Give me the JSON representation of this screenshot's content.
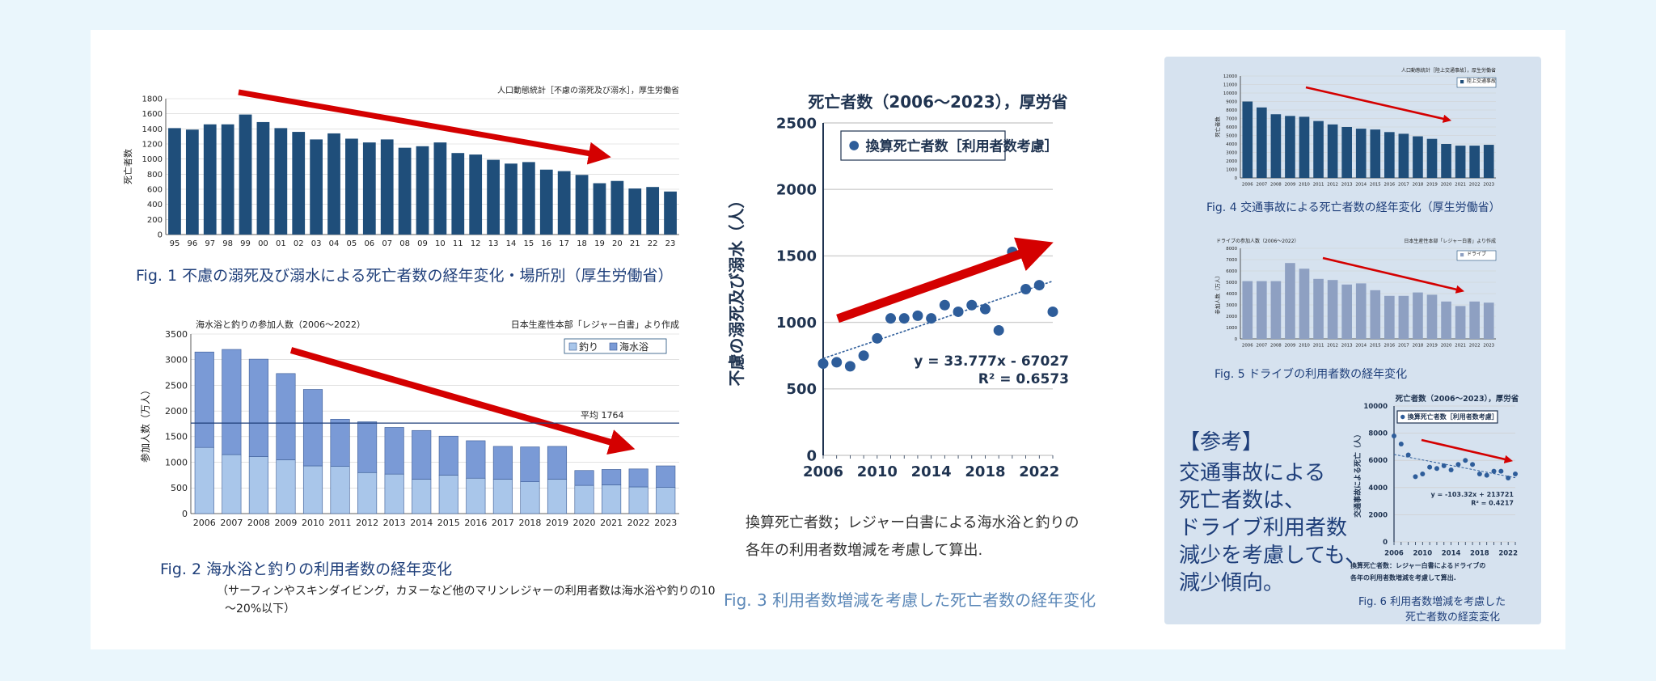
{
  "colors": {
    "bar_dark": "#1f4e7a",
    "bar_blue": "#7a9ad6",
    "bar_light": "#a9c6ea",
    "drive_bar": "#8ea0c2",
    "trend_arrow": "#d40000",
    "point": "#2e5d9a",
    "caption": "#1f3f7a",
    "background": "#eaf6fc",
    "side_panel": "#d6e2ef"
  },
  "chart_data": [
    {
      "id": "fig1",
      "type": "bar",
      "source": "人口動態統計［不慮の溺死及び溺水］，厚生労働省",
      "ylabel": "死亡者数",
      "ylim": [
        0,
        1800
      ],
      "yticks": [
        "0",
        "200",
        "400",
        "600",
        "800",
        "1000",
        "1200",
        "1400",
        "1600",
        "1800"
      ],
      "categories": [
        "95",
        "96",
        "97",
        "98",
        "99",
        "00",
        "01",
        "02",
        "03",
        "04",
        "05",
        "06",
        "07",
        "08",
        "09",
        "10",
        "11",
        "12",
        "13",
        "14",
        "15",
        "16",
        "17",
        "18",
        "19",
        "20",
        "21",
        "22",
        "23"
      ],
      "values": [
        1410,
        1390,
        1460,
        1460,
        1590,
        1490,
        1410,
        1360,
        1260,
        1340,
        1270,
        1220,
        1260,
        1150,
        1170,
        1220,
        1080,
        1060,
        990,
        940,
        960,
        860,
        840,
        790,
        680,
        710,
        610,
        630,
        570
      ],
      "trend_arrow": "decreasing"
    },
    {
      "id": "fig2",
      "type": "bar",
      "stacked": true,
      "title": "海水浴と釣りの参加人数（2006〜2022）",
      "source": "日本生産性本部「レジャー白書」より作成",
      "ylabel": "参加人数（万人）",
      "ylim": [
        0,
        3500
      ],
      "yticks": [
        "0",
        "500",
        "1000",
        "1500",
        "2000",
        "2500",
        "3000",
        "3500"
      ],
      "categories": [
        "2006",
        "2007",
        "2008",
        "2009",
        "2010",
        "2011",
        "2012",
        "2013",
        "2014",
        "2015",
        "2016",
        "2017",
        "2018",
        "2019",
        "2020",
        "2021",
        "2022",
        "2023"
      ],
      "series": [
        {
          "name": "釣り",
          "values": [
            1290,
            1150,
            1110,
            1050,
            930,
            920,
            800,
            770,
            670,
            750,
            690,
            670,
            620,
            670,
            550,
            560,
            520,
            510
          ]
        },
        {
          "name": "海水浴",
          "values": [
            1860,
            2050,
            1900,
            1680,
            1490,
            920,
            990,
            910,
            950,
            760,
            730,
            640,
            680,
            640,
            290,
            300,
            350,
            420
          ]
        }
      ],
      "average": {
        "label": "平均",
        "value": "1764"
      },
      "trend_arrow": "decreasing"
    },
    {
      "id": "fig3",
      "type": "scatter",
      "title": "死亡者数（2006〜2023），厚労省",
      "legend": "換算死亡者数［利用者数考慮］",
      "ylabel": "不慮の溺死及び溺水（人）",
      "xlim": [
        2006,
        2023
      ],
      "ylim": [
        0,
        2500
      ],
      "xticks": [
        "2006",
        "2010",
        "2014",
        "2018",
        "2022"
      ],
      "yticks": [
        "0",
        "500",
        "1000",
        "1500",
        "2000",
        "2500"
      ],
      "x": [
        2006,
        2007,
        2008,
        2009,
        2010,
        2011,
        2012,
        2013,
        2014,
        2015,
        2016,
        2017,
        2018,
        2019,
        2020,
        2021,
        2022,
        2023
      ],
      "y": [
        690,
        700,
        670,
        750,
        880,
        1030,
        1030,
        1050,
        1030,
        1130,
        1080,
        1130,
        1100,
        940,
        1530,
        1250,
        1280,
        1080
      ],
      "fit_equation": "y = 33.777x - 67027",
      "r_squared": "R² = 0.6573",
      "trend_arrow": "increasing"
    },
    {
      "id": "fig4",
      "type": "bar",
      "source": "人口動態統計［陸上交通事故］，厚生労働省",
      "legend": "陸上交通事故",
      "ylabel": "死亡者数",
      "ylim": [
        0,
        12000
      ],
      "yticks": [
        "0",
        "1000",
        "2000",
        "3000",
        "4000",
        "5000",
        "6000",
        "7000",
        "8000",
        "9000",
        "10000",
        "11000",
        "12000"
      ],
      "categories": [
        "2006",
        "2007",
        "2008",
        "2009",
        "2010",
        "2011",
        "2012",
        "2013",
        "2014",
        "2015",
        "2016",
        "2017",
        "2018",
        "2019",
        "2020",
        "2021",
        "2022",
        "2023"
      ],
      "values": [
        9000,
        8300,
        7500,
        7300,
        7200,
        6700,
        6300,
        6000,
        5800,
        5700,
        5400,
        5200,
        4900,
        4600,
        4000,
        3800,
        3800,
        3900
      ],
      "trend_arrow": "decreasing"
    },
    {
      "id": "fig5",
      "type": "bar",
      "title": "ドライブの参加人数（2006〜2022）",
      "source": "日本生産性本部「レジャー白書」より作成",
      "legend": "ドライブ",
      "ylabel": "参加人数（万人）",
      "ylim": [
        0,
        8000
      ],
      "yticks": [
        "0",
        "1000",
        "2000",
        "3000",
        "4000",
        "5000",
        "6000",
        "7000",
        "8000"
      ],
      "categories": [
        "2006",
        "2007",
        "2008",
        "2009",
        "2010",
        "2011",
        "2012",
        "2013",
        "2014",
        "2015",
        "2016",
        "2017",
        "2018",
        "2019",
        "2020",
        "2021",
        "2022",
        "2023"
      ],
      "values": [
        5100,
        5100,
        5100,
        6700,
        6200,
        5300,
        5200,
        4800,
        4900,
        4300,
        3800,
        3800,
        4100,
        3900,
        3300,
        2900,
        3300,
        3200
      ],
      "trend_arrow": "decreasing"
    },
    {
      "id": "fig6",
      "type": "scatter",
      "title": "死亡者数（2006〜2023），厚労省",
      "legend": "換算死亡者数［利用者数考慮］",
      "ylabel": "交通事故による死亡（人）",
      "xlim": [
        2006,
        2023
      ],
      "ylim": [
        0,
        10000
      ],
      "xticks": [
        "2006",
        "2010",
        "2014",
        "2018",
        "2022"
      ],
      "yticks": [
        "0",
        "2000",
        "4000",
        "6000",
        "8000",
        "10000"
      ],
      "x": [
        2006,
        2007,
        2008,
        2009,
        2010,
        2011,
        2012,
        2013,
        2014,
        2015,
        2016,
        2017,
        2018,
        2019,
        2020,
        2021,
        2022,
        2023
      ],
      "y": [
        7800,
        7200,
        6400,
        4800,
        5000,
        5500,
        5400,
        5600,
        5300,
        5700,
        6000,
        5700,
        5000,
        4900,
        5200,
        5200,
        4700,
        5000
      ],
      "fit_equation": "y = -103.32x + 213721",
      "r_squared": "R² = 0.4217",
      "trend_arrow": "decreasing"
    }
  ],
  "captions": {
    "fig1": "Fig. 1 不慮の溺死及び溺水による死亡者数の経年変化・場所別（厚生労働省）",
    "fig2": "Fig. 2 海水浴と釣りの利用者数の経年変化",
    "fig2_note_1": "（サーフィンやスキンダイビング，カヌーなど他のマリンレジャーの利用者数は海水浴や釣りの10",
    "fig2_note_2": "〜20%以下）",
    "fig3": "Fig. 3 利用者数増減を考慮した死亡者数の経年変化",
    "fig3_note_1": "換算死亡者数；レジャー白書による海水浴と釣りの",
    "fig3_note_2": "各年の利用者数増減を考慮して算出.",
    "fig4": "Fig. 4 交通事故による死亡者数の経年変化（厚生労働省）",
    "fig5": "Fig. 5 ドライブの利用者数の経年変化",
    "fig6_note_1": "換算死亡者数：レジャー白書によるドライブの",
    "fig6_note_2": "各年の利用者数増減を考慮して算出.",
    "fig6_1": "Fig. 6 利用者数増減を考慮した",
    "fig6_2": "死亡者数の経変変化"
  },
  "reference": {
    "heading": "【参考】",
    "lines": [
      "交通事故による",
      "死亡者数は、",
      "ドライブ利用者数",
      "減少を考慮しても、",
      "減少傾向。"
    ]
  }
}
